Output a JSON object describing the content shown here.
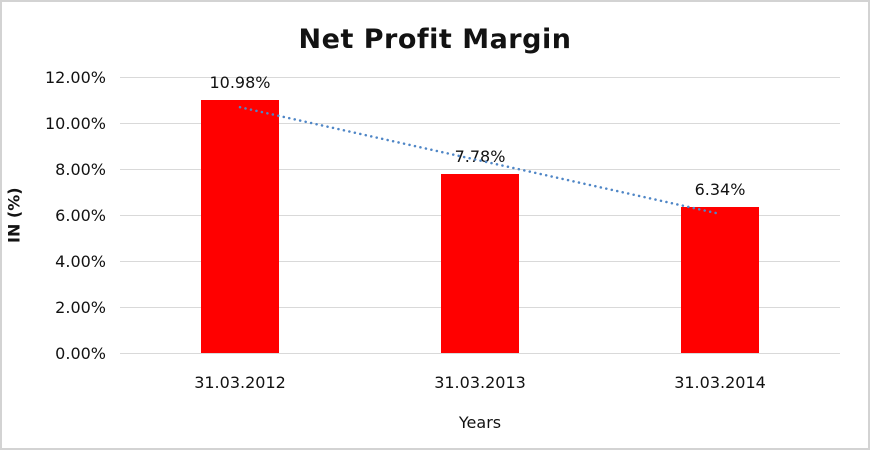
{
  "window": {
    "background": "#ffffff",
    "frame_border_color": "#d3d3d3"
  },
  "chart_data": {
    "type": "bar",
    "title": "Net Profit Margin",
    "xlabel": "Years",
    "ylabel": "IN (%)",
    "categories": [
      "31.03.2012",
      "31.03.2013",
      "31.03.2014"
    ],
    "values": [
      10.98,
      7.78,
      6.34
    ],
    "value_labels": [
      "10.98%",
      "7.78%",
      "6.34%"
    ],
    "y_ticks": [
      "0.00%",
      "2.00%",
      "4.00%",
      "6.00%",
      "8.00%",
      "10.00%",
      "12.00%"
    ],
    "ylim": [
      0,
      12
    ],
    "grid": true,
    "legend": "none",
    "bar_color": "#ff0000",
    "gridline_color": "#d9d9d9",
    "text_color": "#121212",
    "trendline": {
      "type": "linear",
      "style": "dotted",
      "color": "#4f86c6"
    }
  }
}
